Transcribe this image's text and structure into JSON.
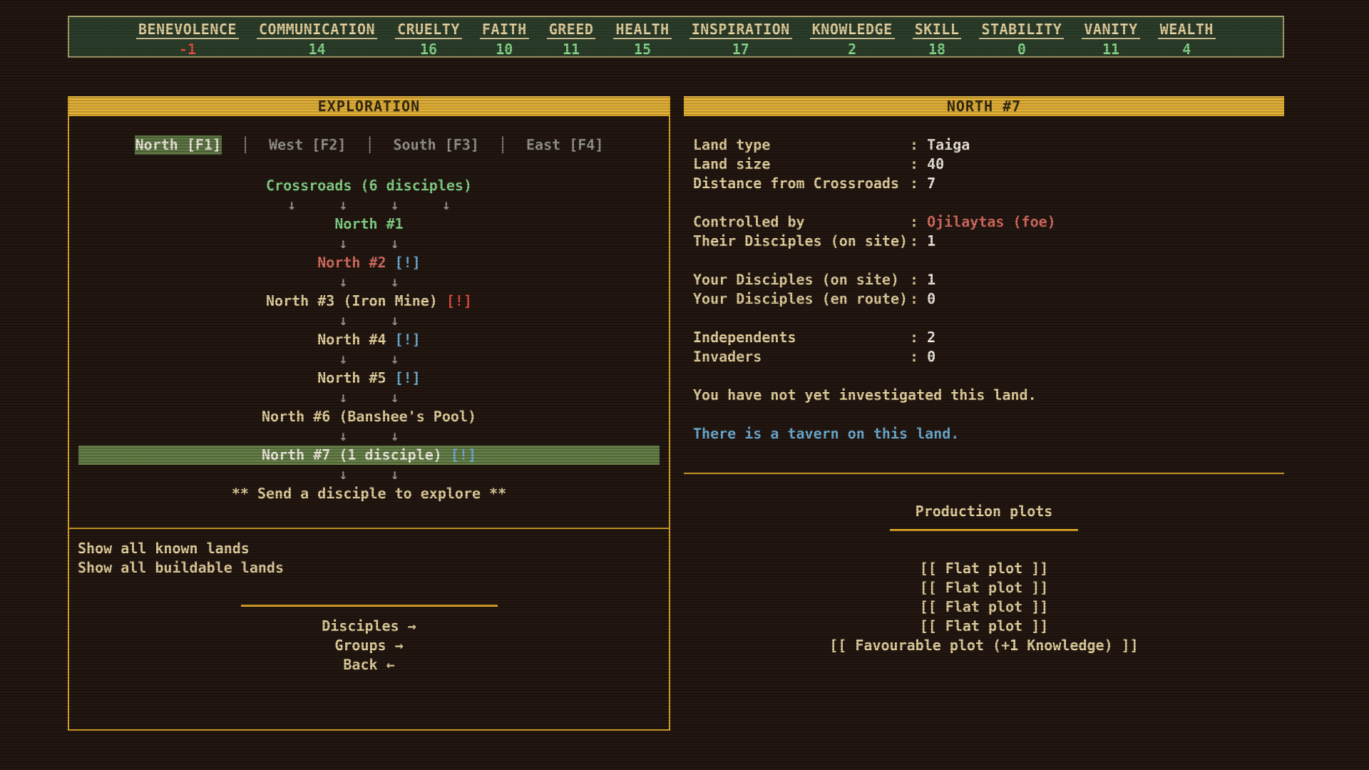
{
  "stats": {
    "items": [
      {
        "name": "BENEVOLENCE",
        "value": "-1",
        "negative": true
      },
      {
        "name": "COMMUNICATION",
        "value": "14",
        "negative": false
      },
      {
        "name": "CRUELTY",
        "value": "16",
        "negative": false
      },
      {
        "name": "FAITH",
        "value": "10",
        "negative": false
      },
      {
        "name": "GREED",
        "value": "11",
        "negative": false
      },
      {
        "name": "HEALTH",
        "value": "15",
        "negative": false
      },
      {
        "name": "INSPIRATION",
        "value": "17",
        "negative": false
      },
      {
        "name": "KNOWLEDGE",
        "value": "2",
        "negative": false
      },
      {
        "name": "SKILL",
        "value": "18",
        "negative": false
      },
      {
        "name": "STABILITY",
        "value": "0",
        "negative": false
      },
      {
        "name": "VANITY",
        "value": "11",
        "negative": false
      },
      {
        "name": "WEALTH",
        "value": "4",
        "negative": false
      }
    ]
  },
  "exploration": {
    "title": "EXPLORATION",
    "tab_separator": "│",
    "tabs": [
      {
        "id": "north",
        "label": "North [F1]",
        "active": true
      },
      {
        "id": "west",
        "label": "West [F2]",
        "active": false
      },
      {
        "id": "south",
        "label": "South [F3]",
        "active": false
      },
      {
        "id": "east",
        "label": "East [F4]",
        "active": false
      }
    ],
    "tree": [
      {
        "id": "crossroads",
        "interactable": true,
        "segments": [
          {
            "t": "Crossroads (6 disciples)",
            "c": "green"
          }
        ]
      },
      {
        "id": "arrows-1",
        "arrows": true,
        "segments": [
          {
            "t": "↓     ↓     ↓     ↓",
            "c": "gray"
          }
        ]
      },
      {
        "id": "north-1",
        "interactable": true,
        "segments": [
          {
            "t": "North #1",
            "c": "green"
          }
        ]
      },
      {
        "id": "arrows-2",
        "arrows": true,
        "segments": [
          {
            "t": "↓     ↓",
            "c": "gray"
          }
        ]
      },
      {
        "id": "north-2",
        "interactable": true,
        "segments": [
          {
            "t": "North #2 ",
            "c": "red"
          },
          {
            "t": "[!]",
            "c": "blue"
          }
        ]
      },
      {
        "id": "arrows-3",
        "arrows": true,
        "segments": [
          {
            "t": "↓     ↓",
            "c": "gray"
          }
        ]
      },
      {
        "id": "north-3",
        "interactable": true,
        "segments": [
          {
            "t": "North #3 (Iron Mine) ",
            "c": "tan"
          },
          {
            "t": "[!]",
            "c": "alert"
          }
        ]
      },
      {
        "id": "arrows-4",
        "arrows": true,
        "segments": [
          {
            "t": "↓     ↓",
            "c": "gray"
          }
        ]
      },
      {
        "id": "north-4",
        "interactable": true,
        "segments": [
          {
            "t": "North #4 ",
            "c": "tan"
          },
          {
            "t": "[!]",
            "c": "blue"
          }
        ]
      },
      {
        "id": "arrows-5",
        "arrows": true,
        "segments": [
          {
            "t": "↓     ↓",
            "c": "gray"
          }
        ]
      },
      {
        "id": "north-5",
        "interactable": true,
        "segments": [
          {
            "t": "North #5 ",
            "c": "tan"
          },
          {
            "t": "[!]",
            "c": "blue"
          }
        ]
      },
      {
        "id": "arrows-6",
        "arrows": true,
        "segments": [
          {
            "t": "↓     ↓",
            "c": "gray"
          }
        ]
      },
      {
        "id": "north-6",
        "interactable": true,
        "segments": [
          {
            "t": "North #6 (Banshee's Pool)",
            "c": "tan"
          }
        ]
      },
      {
        "id": "arrows-7",
        "arrows": true,
        "segments": [
          {
            "t": "↓     ↓",
            "c": "gray"
          }
        ]
      },
      {
        "id": "north-7",
        "interactable": true,
        "highlight": true,
        "segments": [
          {
            "t": "North #7 (1 disciple) ",
            "c": "white"
          },
          {
            "t": "[!]",
            "c": "blue"
          }
        ]
      },
      {
        "id": "arrows-8",
        "arrows": true,
        "segments": [
          {
            "t": "↓     ↓",
            "c": "gray"
          }
        ]
      },
      {
        "id": "explore-prompt",
        "interactable": true,
        "segments": [
          {
            "t": "** Send a disciple to explore **",
            "c": "tan"
          }
        ]
      }
    ],
    "options": [
      {
        "id": "show-known-lands",
        "label": "Show all known lands"
      },
      {
        "id": "show-buildable-lands",
        "label": "Show all buildable lands"
      }
    ],
    "menu": [
      {
        "id": "disciples",
        "label": "Disciples →"
      },
      {
        "id": "groups",
        "label": "Groups →"
      },
      {
        "id": "back",
        "label": "Back ←"
      }
    ]
  },
  "land_panel": {
    "title": "NORTH #7",
    "rows": [
      {
        "label": "Land type",
        "value": "Taiga",
        "vc": "white"
      },
      {
        "label": "Land size",
        "value": "40",
        "vc": "white"
      },
      {
        "label": "Distance from Crossroads",
        "value": "7",
        "vc": "white"
      },
      {
        "spacer": true
      },
      {
        "label": "Controlled by",
        "value": "Ojilaytas (foe)",
        "vc": "red"
      },
      {
        "label": "Their Disciples (on site)",
        "value": "1",
        "vc": "white"
      },
      {
        "spacer": true
      },
      {
        "label": "Your Disciples (on site)",
        "value": "1",
        "vc": "white"
      },
      {
        "label": "Your Disciples (en route)",
        "value": "0",
        "vc": "white"
      },
      {
        "spacer": true
      },
      {
        "label": "Independents",
        "value": "2",
        "vc": "white"
      },
      {
        "label": "Invaders",
        "value": "0",
        "vc": "white"
      },
      {
        "spacer": true
      },
      {
        "message": "You have not yet investigated this land.",
        "vc": "tan"
      },
      {
        "spacer": true
      },
      {
        "message": "There is a tavern on this land.",
        "vc": "blue"
      }
    ],
    "production": {
      "title": "Production plots",
      "plots": [
        {
          "label": "[[ Flat plot ]]"
        },
        {
          "label": "[[ Flat plot ]]"
        },
        {
          "label": "[[ Flat plot ]]"
        },
        {
          "label": "[[ Flat plot ]]"
        },
        {
          "label": "[[ Favourable plot (+1 Knowledge) ]]"
        }
      ]
    }
  }
}
